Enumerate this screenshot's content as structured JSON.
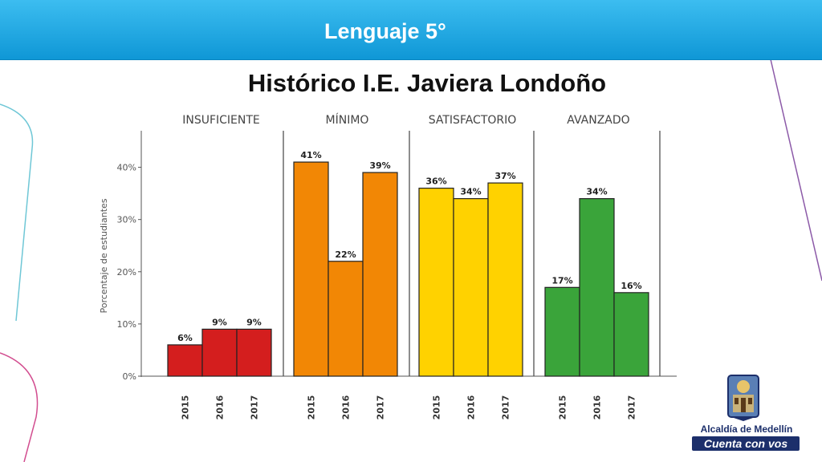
{
  "header": {
    "title": "Lenguaje 5°"
  },
  "page": {
    "title": "Histórico I.E. Javiera Londoño"
  },
  "logo": {
    "line1": "Alcaldía de Medellín",
    "line2": "Cuenta con vos"
  },
  "colors": {
    "header_bar": "#1aa6e4",
    "insuficiente": "#d41e1e",
    "minimo": "#f28705",
    "satisfactorio": "#ffd200",
    "avanzado": "#3aa43a"
  },
  "chart_data": {
    "type": "bar",
    "ylabel": "Porcentaje de estudiantes",
    "ylim": [
      0,
      47
    ],
    "yticks": [
      0,
      10,
      20,
      30,
      40
    ],
    "ytick_labels": [
      "0%",
      "10%",
      "20%",
      "30%",
      "40%"
    ],
    "grid": false,
    "groups": [
      {
        "name": "INSUFICIENTE",
        "color": "#d41e1e",
        "categories": [
          "2015",
          "2016",
          "2017"
        ],
        "values": [
          6,
          9,
          9
        ],
        "labels": [
          "6%",
          "9%",
          "9%"
        ]
      },
      {
        "name": "MÍNIMO",
        "color": "#f28705",
        "categories": [
          "2015",
          "2016",
          "2017"
        ],
        "values": [
          41,
          22,
          39
        ],
        "labels": [
          "41%",
          "22%",
          "39%"
        ]
      },
      {
        "name": "SATISFACTORIO",
        "color": "#ffd200",
        "categories": [
          "2015",
          "2016",
          "2017"
        ],
        "values": [
          36,
          34,
          37
        ],
        "labels": [
          "36%",
          "34%",
          "37%"
        ]
      },
      {
        "name": "AVANZADO",
        "color": "#3aa43a",
        "categories": [
          "2015",
          "2016",
          "2017"
        ],
        "values": [
          17,
          34,
          16
        ],
        "labels": [
          "17%",
          "34%",
          "16%"
        ]
      }
    ]
  }
}
